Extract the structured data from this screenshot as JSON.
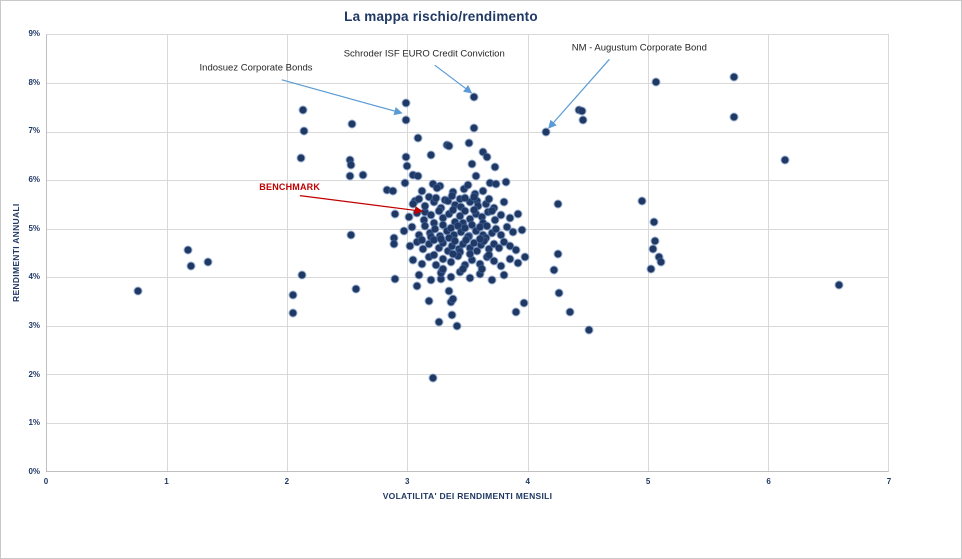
{
  "title": "La mappa rischio/rendimento",
  "colors": {
    "title_text": "#1F3864",
    "axis_text": "#1F3864",
    "point_fill": "#1F3864",
    "gridline": "#D9D9D9",
    "annotation_blue": "#5B9BD5",
    "annotation_red": "#C00000",
    "annotation_text": "#262626"
  },
  "chart_data": {
    "type": "scatter",
    "title": "La mappa rischio/rendimento",
    "xlabel": "VOLATILITA' DEI RENDIMENTI MENSILI",
    "ylabel": "RENDIMENTI ANNUALI",
    "xlim": [
      0,
      7
    ],
    "ylim": [
      0,
      9
    ],
    "x_ticks": [
      "0",
      "1",
      "2",
      "3",
      "4",
      "5",
      "6",
      "7"
    ],
    "y_ticks": [
      "0%",
      "1%",
      "2%",
      "3%",
      "4%",
      "5%",
      "6%",
      "7%",
      "8%",
      "9%"
    ],
    "grid": true,
    "legend": "none",
    "y_unit": "percent_annual_return",
    "x_unit": "monthly_return_volatility",
    "annotations": [
      {
        "id": "indosuez",
        "label": "Indosuez Corporate Bonds",
        "color": "blue",
        "label_x": 1.74,
        "label_y": 8.32,
        "arrow": [
          [
            1.95,
            8.08
          ],
          [
            2.94,
            7.4
          ]
        ]
      },
      {
        "id": "schroder",
        "label": "Schroder ISF EURO Credit Conviction",
        "color": "blue",
        "label_x": 3.14,
        "label_y": 8.6,
        "arrow": [
          [
            3.22,
            8.38
          ],
          [
            3.52,
            7.82
          ]
        ]
      },
      {
        "id": "nm-augustum",
        "label": "NM - Augustum Corporate Bond",
        "color": "blue",
        "label_x": 4.93,
        "label_y": 8.73,
        "arrow": [
          [
            4.67,
            8.5
          ],
          [
            4.17,
            7.1
          ]
        ]
      },
      {
        "id": "benchmark",
        "label": "BENCHMARK",
        "color": "red",
        "label_x": 2.02,
        "label_y": 5.87,
        "arrow": [
          [
            2.1,
            5.7
          ],
          [
            3.11,
            5.38
          ]
        ]
      }
    ],
    "highlighted_points": {
      "indosuez": [
        2.99,
        7.25
      ],
      "schroder": [
        3.55,
        7.72
      ],
      "nm_augustum": [
        4.15,
        7.0
      ],
      "benchmark": [
        3.15,
        5.34
      ]
    },
    "points": [
      [
        0.76,
        3.72
      ],
      [
        1.17,
        4.56
      ],
      [
        1.2,
        4.23
      ],
      [
        1.34,
        4.32
      ],
      [
        2.05,
        3.63
      ],
      [
        2.05,
        3.27
      ],
      [
        2.12,
        4.05
      ],
      [
        2.11,
        6.47
      ],
      [
        2.13,
        7.45
      ],
      [
        2.14,
        7.02
      ],
      [
        2.53,
        4.88
      ],
      [
        2.57,
        3.76
      ],
      [
        2.52,
        6.41
      ],
      [
        2.53,
        6.31
      ],
      [
        2.52,
        6.09
      ],
      [
        2.63,
        6.1
      ],
      [
        2.54,
        7.16
      ],
      [
        2.83,
        5.81
      ],
      [
        2.88,
        5.78
      ],
      [
        2.9,
        5.31
      ],
      [
        2.89,
        4.81
      ],
      [
        2.89,
        4.68
      ],
      [
        2.9,
        3.96
      ],
      [
        2.99,
        7.59
      ],
      [
        2.99,
        7.25
      ],
      [
        3.09,
        6.88
      ],
      [
        2.99,
        6.48
      ],
      [
        3.0,
        6.29
      ],
      [
        3.05,
        6.1
      ],
      [
        3.09,
        6.08
      ],
      [
        3.2,
        6.52
      ],
      [
        3.33,
        6.72
      ],
      [
        3.35,
        6.7
      ],
      [
        3.55,
        7.72
      ],
      [
        3.55,
        7.08
      ],
      [
        3.51,
        6.78
      ],
      [
        3.54,
        6.33
      ],
      [
        3.57,
        6.09
      ],
      [
        3.63,
        6.58
      ],
      [
        3.66,
        6.48
      ],
      [
        3.73,
        6.28
      ],
      [
        2.98,
        5.94
      ],
      [
        3.21,
        5.92
      ],
      [
        3.27,
        5.89
      ],
      [
        3.69,
        5.94
      ],
      [
        3.74,
        5.92
      ],
      [
        3.82,
        5.97
      ],
      [
        4.15,
        7.0
      ],
      [
        4.43,
        7.46
      ],
      [
        4.45,
        7.43
      ],
      [
        4.46,
        7.25
      ],
      [
        5.07,
        8.03
      ],
      [
        5.72,
        8.13
      ],
      [
        5.72,
        7.31
      ],
      [
        6.14,
        6.41
      ],
      [
        4.25,
        5.52
      ],
      [
        4.95,
        5.57
      ],
      [
        5.05,
        5.13
      ],
      [
        5.06,
        4.74
      ],
      [
        5.04,
        4.58
      ],
      [
        5.09,
        4.42
      ],
      [
        5.11,
        4.31
      ],
      [
        5.03,
        4.17
      ],
      [
        4.25,
        4.48
      ],
      [
        4.22,
        4.15
      ],
      [
        4.26,
        3.67
      ],
      [
        4.35,
        3.29
      ],
      [
        4.51,
        2.92
      ],
      [
        6.59,
        3.84
      ],
      [
        3.9,
        3.29
      ],
      [
        3.97,
        3.46
      ],
      [
        3.18,
        3.5
      ],
      [
        3.36,
        3.48
      ],
      [
        3.37,
        3.23
      ],
      [
        3.26,
        3.07
      ],
      [
        3.41,
        2.99
      ],
      [
        3.21,
        1.93
      ],
      [
        3.08,
        3.82
      ],
      [
        3.28,
        3.96
      ],
      [
        3.29,
        4.13
      ],
      [
        3.35,
        3.72
      ],
      [
        3.38,
        3.55
      ],
      [
        3.15,
        5.34
      ],
      [
        3.12,
        5.78
      ],
      [
        3.25,
        5.85
      ],
      [
        3.38,
        5.76
      ],
      [
        3.47,
        5.82
      ],
      [
        3.56,
        5.71
      ],
      [
        3.63,
        5.79
      ],
      [
        3.18,
        5.66
      ],
      [
        3.44,
        5.62
      ],
      [
        3.58,
        5.58
      ],
      [
        3.31,
        5.6
      ],
      [
        3.06,
        5.57
      ],
      [
        3.5,
        5.9
      ],
      [
        3.05,
        5.52
      ],
      [
        3.15,
        5.47
      ],
      [
        3.22,
        5.55
      ],
      [
        3.28,
        5.43
      ],
      [
        3.34,
        5.57
      ],
      [
        3.4,
        5.5
      ],
      [
        3.45,
        5.44
      ],
      [
        3.52,
        5.55
      ],
      [
        3.59,
        5.47
      ],
      [
        3.65,
        5.52
      ],
      [
        3.72,
        5.42
      ],
      [
        3.48,
        5.63
      ],
      [
        3.37,
        5.68
      ],
      [
        3.24,
        5.64
      ],
      [
        3.1,
        5.61
      ],
      [
        3.55,
        5.66
      ],
      [
        3.68,
        5.61
      ],
      [
        3.8,
        5.55
      ],
      [
        3.01,
        5.25
      ],
      [
        3.08,
        5.32
      ],
      [
        3.14,
        5.18
      ],
      [
        3.2,
        5.28
      ],
      [
        3.26,
        5.36
      ],
      [
        3.3,
        5.22
      ],
      [
        3.35,
        5.3
      ],
      [
        3.4,
        5.15
      ],
      [
        3.44,
        5.26
      ],
      [
        3.48,
        5.36
      ],
      [
        3.52,
        5.2
      ],
      [
        3.57,
        5.31
      ],
      [
        3.62,
        5.24
      ],
      [
        3.67,
        5.34
      ],
      [
        3.73,
        5.18
      ],
      [
        3.78,
        5.28
      ],
      [
        3.85,
        5.22
      ],
      [
        3.22,
        5.12
      ],
      [
        3.38,
        5.39
      ],
      [
        3.46,
        5.12
      ],
      [
        3.55,
        5.39
      ],
      [
        3.63,
        5.12
      ],
      [
        3.7,
        5.37
      ],
      [
        3.92,
        5.3
      ],
      [
        2.97,
        4.95
      ],
      [
        3.04,
        5.03
      ],
      [
        3.1,
        4.88
      ],
      [
        3.15,
        5.06
      ],
      [
        3.19,
        4.92
      ],
      [
        3.23,
        5.0
      ],
      [
        3.27,
        4.85
      ],
      [
        3.3,
        5.08
      ],
      [
        3.33,
        4.95
      ],
      [
        3.36,
        5.02
      ],
      [
        3.39,
        4.88
      ],
      [
        3.42,
        5.05
      ],
      [
        3.45,
        4.93
      ],
      [
        3.48,
        5.01
      ],
      [
        3.51,
        4.86
      ],
      [
        3.54,
        5.07
      ],
      [
        3.57,
        4.95
      ],
      [
        3.6,
        5.03
      ],
      [
        3.63,
        4.88
      ],
      [
        3.66,
        5.05
      ],
      [
        3.7,
        4.92
      ],
      [
        3.74,
        5.0
      ],
      [
        3.78,
        4.88
      ],
      [
        3.83,
        5.04
      ],
      [
        3.88,
        4.94
      ],
      [
        3.2,
        4.82
      ],
      [
        3.35,
        4.8
      ],
      [
        3.5,
        4.82
      ],
      [
        3.65,
        4.8
      ],
      [
        3.95,
        4.97
      ],
      [
        3.02,
        4.65
      ],
      [
        3.08,
        4.72
      ],
      [
        3.13,
        4.58
      ],
      [
        3.18,
        4.68
      ],
      [
        3.22,
        4.76
      ],
      [
        3.26,
        4.6
      ],
      [
        3.3,
        4.7
      ],
      [
        3.34,
        4.55
      ],
      [
        3.37,
        4.65
      ],
      [
        3.4,
        4.74
      ],
      [
        3.43,
        4.58
      ],
      [
        3.46,
        4.68
      ],
      [
        3.49,
        4.77
      ],
      [
        3.52,
        4.6
      ],
      [
        3.55,
        4.7
      ],
      [
        3.58,
        4.55
      ],
      [
        3.61,
        4.66
      ],
      [
        3.64,
        4.75
      ],
      [
        3.68,
        4.58
      ],
      [
        3.72,
        4.68
      ],
      [
        3.76,
        4.6
      ],
      [
        3.8,
        4.72
      ],
      [
        3.85,
        4.64
      ],
      [
        3.9,
        4.56
      ],
      [
        3.12,
        4.77
      ],
      [
        3.28,
        4.79
      ],
      [
        3.44,
        4.52
      ],
      [
        3.6,
        4.78
      ],
      [
        3.05,
        4.35
      ],
      [
        3.12,
        4.28
      ],
      [
        3.18,
        4.41
      ],
      [
        3.24,
        4.25
      ],
      [
        3.3,
        4.38
      ],
      [
        3.36,
        4.31
      ],
      [
        3.42,
        4.43
      ],
      [
        3.48,
        4.26
      ],
      [
        3.54,
        4.36
      ],
      [
        3.6,
        4.28
      ],
      [
        3.66,
        4.41
      ],
      [
        3.72,
        4.33
      ],
      [
        3.78,
        4.24
      ],
      [
        3.85,
        4.38
      ],
      [
        3.22,
        4.46
      ],
      [
        3.38,
        4.48
      ],
      [
        3.52,
        4.47
      ],
      [
        3.68,
        4.45
      ],
      [
        3.92,
        4.3
      ],
      [
        3.98,
        4.42
      ],
      [
        3.1,
        4.05
      ],
      [
        3.2,
        3.95
      ],
      [
        3.28,
        4.08
      ],
      [
        3.36,
        4.01
      ],
      [
        3.44,
        4.1
      ],
      [
        3.52,
        3.98
      ],
      [
        3.6,
        4.06
      ],
      [
        3.7,
        3.95
      ],
      [
        3.8,
        4.05
      ],
      [
        3.3,
        4.16
      ],
      [
        3.46,
        4.18
      ],
      [
        3.62,
        4.16
      ]
    ]
  }
}
